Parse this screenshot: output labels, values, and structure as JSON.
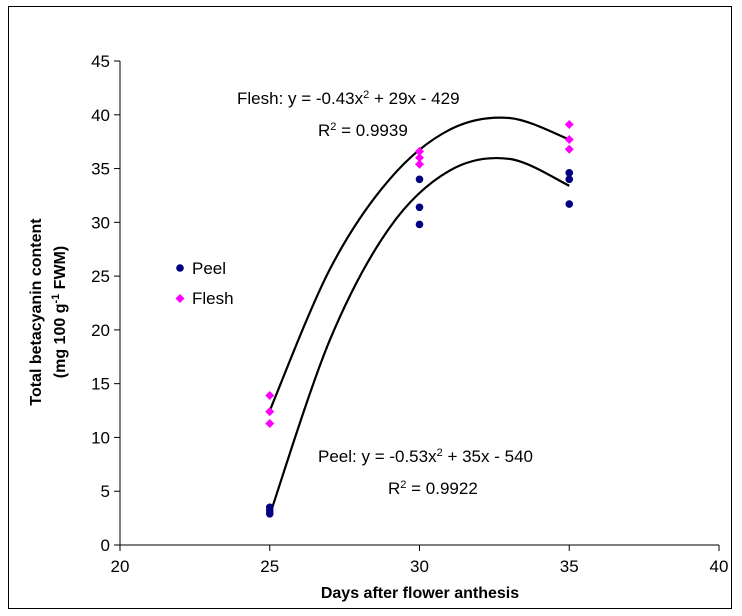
{
  "chart_data": {
    "type": "scatter",
    "xlabel": "Days after flower anthesis",
    "ylabel_line1": "Total betacyanin content",
    "ylabel_line2_prefix": "(mg 100 g",
    "ylabel_line2_sup": "-1",
    "ylabel_line2_suffix": " FWM)",
    "xlim": [
      20,
      40
    ],
    "ylim": [
      0,
      45
    ],
    "xticks": [
      20,
      25,
      30,
      35,
      40
    ],
    "yticks": [
      0,
      5,
      10,
      15,
      20,
      25,
      30,
      35,
      40,
      45
    ],
    "grid": false,
    "legend_position": "left",
    "series": [
      {
        "name": "Peel",
        "color": "#000080",
        "marker": "circle",
        "points": [
          [
            25,
            3.5
          ],
          [
            25,
            3.2
          ],
          [
            25,
            2.9
          ],
          [
            30,
            34.0
          ],
          [
            30,
            31.4
          ],
          [
            30,
            29.8
          ],
          [
            35,
            34.6
          ],
          [
            35,
            34.0
          ],
          [
            35,
            31.7
          ]
        ],
        "fit": {
          "a": -0.53,
          "b": 35,
          "c": -540
        }
      },
      {
        "name": "Flesh",
        "color": "#ff00ff",
        "marker": "diamond",
        "points": [
          [
            25,
            13.9
          ],
          [
            25,
            12.4
          ],
          [
            25,
            11.3
          ],
          [
            30,
            36.6
          ],
          [
            30,
            36.0
          ],
          [
            30,
            35.4
          ],
          [
            35,
            39.1
          ],
          [
            35,
            37.7
          ],
          [
            35,
            36.8
          ]
        ],
        "fit": {
          "a": -0.43,
          "b": 29,
          "c": -429
        }
      }
    ],
    "annotations": {
      "flesh_eq_prefix": "Flesh: y = -0.43x",
      "flesh_eq_sup": "2",
      "flesh_eq_suffix": " + 29x - 429",
      "flesh_r2_prefix": "R",
      "flesh_r2_sup": "2",
      "flesh_r2_suffix": " = 0.9939",
      "peel_eq_prefix": "Peel: y = -0.53x",
      "peel_eq_sup": "2",
      "peel_eq_suffix": " + 35x - 540",
      "peel_r2_prefix": "R",
      "peel_r2_sup": "2",
      "peel_r2_suffix": " = 0.9922"
    },
    "fit_curves": [
      {
        "name": "Peel fit",
        "x_range": [
          25,
          35
        ],
        "anchors": [
          [
            25,
            2.8
          ],
          [
            27,
            19.0
          ],
          [
            29,
            29.5
          ],
          [
            31,
            34.8
          ],
          [
            33,
            35.9
          ],
          [
            35,
            33.4
          ]
        ]
      },
      {
        "name": "Flesh fit",
        "x_range": [
          25,
          35
        ],
        "anchors": [
          [
            25,
            12.5
          ],
          [
            27,
            25.6
          ],
          [
            29,
            34.0
          ],
          [
            31,
            38.6
          ],
          [
            33,
            39.7
          ],
          [
            35,
            37.7
          ]
        ]
      }
    ]
  }
}
